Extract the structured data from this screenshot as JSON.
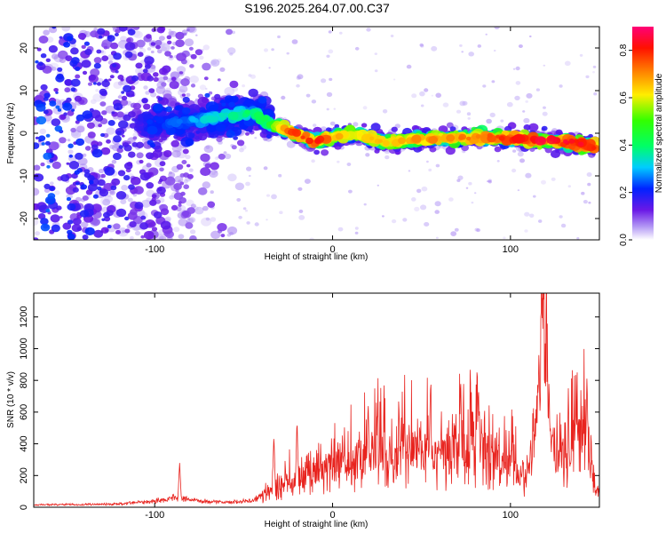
{
  "title": "S196.2025.264.07.00.C37",
  "chart_data": [
    {
      "type": "heatmap",
      "xlabel": "Height of straight line (km)",
      "ylabel": "Frequency (Hz)",
      "xlim": [
        -168,
        150
      ],
      "ylim": [
        -25,
        25
      ],
      "xticks": [
        -100,
        0,
        100
      ],
      "xtick_labels": [
        "-100",
        "0",
        "100"
      ],
      "yticks": [
        -20,
        -10,
        0,
        10,
        20
      ],
      "ytick_labels": [
        "-20",
        "-10",
        "0",
        "10",
        "20"
      ],
      "colorbar": {
        "label": "Normalized spectral amplitude",
        "range": [
          0,
          0.9
        ],
        "ticks": [
          0.0,
          0.2,
          0.4,
          0.6,
          0.8
        ],
        "tick_labels": [
          "0.0",
          "0.2",
          "0.4",
          "0.6",
          "0.8"
        ]
      },
      "ridge": [
        {
          "x": -100,
          "f": 2,
          "amp": 0.2
        },
        {
          "x": -80,
          "f": 3,
          "amp": 0.3
        },
        {
          "x": -60,
          "f": 4,
          "amp": 0.35
        },
        {
          "x": -45,
          "f": 5,
          "amp": 0.4
        },
        {
          "x": -35,
          "f": 2,
          "amp": 0.45
        },
        {
          "x": -25,
          "f": 0.5,
          "amp": 0.75
        },
        {
          "x": -10,
          "f": -2,
          "amp": 0.8
        },
        {
          "x": 10,
          "f": 0,
          "amp": 0.6
        },
        {
          "x": 30,
          "f": -2,
          "amp": 0.65
        },
        {
          "x": 50,
          "f": -1.5,
          "amp": 0.7
        },
        {
          "x": 70,
          "f": -1,
          "amp": 0.7
        },
        {
          "x": 90,
          "f": -1,
          "amp": 0.75
        },
        {
          "x": 110,
          "f": -1.5,
          "amp": 0.8
        },
        {
          "x": 130,
          "f": -2,
          "amp": 0.85
        },
        {
          "x": 145,
          "f": -3,
          "amp": 0.8
        }
      ]
    },
    {
      "type": "line",
      "xlabel": "Height of straight line (km)",
      "ylabel": "SNR (10 * v/v)",
      "xlim": [
        -168,
        150
      ],
      "ylim": [
        0,
        1350
      ],
      "xticks": [
        -100,
        0,
        100
      ],
      "xtick_labels": [
        "-100",
        "0",
        "100"
      ],
      "yticks": [
        0,
        200,
        400,
        600,
        800,
        1000,
        1200
      ],
      "ytick_labels": [
        "0",
        "200",
        "400",
        "600",
        "800",
        "1000",
        "1200"
      ],
      "color": "#e8231e",
      "envelope": [
        {
          "x": -168,
          "y": 15
        },
        {
          "x": -120,
          "y": 20
        },
        {
          "x": -100,
          "y": 40
        },
        {
          "x": -88,
          "y": 60
        },
        {
          "x": -75,
          "y": 40
        },
        {
          "x": -60,
          "y": 30
        },
        {
          "x": -45,
          "y": 40
        },
        {
          "x": -35,
          "y": 120
        },
        {
          "x": -25,
          "y": 150
        },
        {
          "x": -15,
          "y": 220
        },
        {
          "x": 0,
          "y": 260
        },
        {
          "x": 10,
          "y": 300
        },
        {
          "x": 20,
          "y": 330
        },
        {
          "x": 30,
          "y": 360
        },
        {
          "x": 40,
          "y": 360
        },
        {
          "x": 50,
          "y": 350
        },
        {
          "x": 60,
          "y": 330
        },
        {
          "x": 70,
          "y": 360
        },
        {
          "x": 80,
          "y": 380
        },
        {
          "x": 90,
          "y": 340
        },
        {
          "x": 100,
          "y": 280
        },
        {
          "x": 108,
          "y": 150
        },
        {
          "x": 112,
          "y": 300
        },
        {
          "x": 116,
          "y": 750
        },
        {
          "x": 119,
          "y": 1100
        },
        {
          "x": 121,
          "y": 500
        },
        {
          "x": 126,
          "y": 300
        },
        {
          "x": 132,
          "y": 350
        },
        {
          "x": 140,
          "y": 500
        },
        {
          "x": 145,
          "y": 280
        },
        {
          "x": 148,
          "y": 80
        },
        {
          "x": 150,
          "y": 120
        }
      ],
      "spikes": [
        {
          "x": -86,
          "y": 280
        },
        {
          "x": -33,
          "y": 460
        },
        {
          "x": -20,
          "y": 560
        },
        {
          "x": 20,
          "y": 680
        },
        {
          "x": 55,
          "y": 780
        },
        {
          "x": 72,
          "y": 840
        },
        {
          "x": 82,
          "y": 780
        },
        {
          "x": 118,
          "y": 1350
        },
        {
          "x": 116,
          "y": 1020
        },
        {
          "x": 143,
          "y": 840
        }
      ]
    }
  ]
}
